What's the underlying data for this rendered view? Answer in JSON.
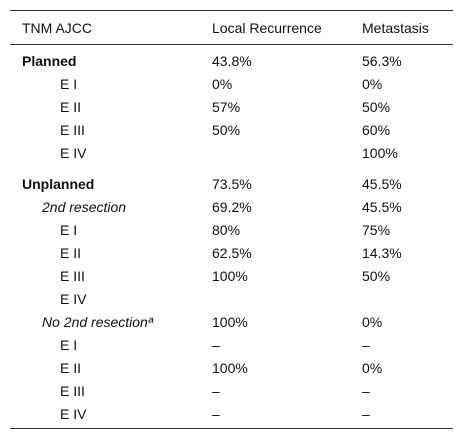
{
  "table": {
    "headers": [
      "TNM AJCC",
      "Local Recurrence",
      "Metastasis"
    ],
    "rows": [
      {
        "type": "group",
        "label": "Planned",
        "local": "43.8%",
        "meta": "56.3%"
      },
      {
        "type": "stage",
        "label": "E I",
        "local": "0%",
        "meta": "0%"
      },
      {
        "type": "stage",
        "label": "E II",
        "local": "57%",
        "meta": "50%"
      },
      {
        "type": "stage",
        "label": "E III",
        "local": "50%",
        "meta": "60%"
      },
      {
        "type": "stage",
        "label": "E IV",
        "local": "",
        "meta": "100%"
      },
      {
        "type": "group",
        "label": "Unplanned",
        "local": "73.5%",
        "meta": "45.5%"
      },
      {
        "type": "sub",
        "label": "2nd resection",
        "local": "69.2%",
        "meta": "45.5%"
      },
      {
        "type": "stage",
        "label": "E I",
        "local": "80%",
        "meta": "75%"
      },
      {
        "type": "stage",
        "label": "E II",
        "local": "62.5%",
        "meta": "14.3%"
      },
      {
        "type": "stage",
        "label": "E III",
        "local": "100%",
        "meta": "50%"
      },
      {
        "type": "stage",
        "label": "E IV",
        "local": "",
        "meta": ""
      },
      {
        "type": "sub",
        "label": "No 2nd resectionª",
        "local": "100%",
        "meta": "0%"
      },
      {
        "type": "stage",
        "label": "E I",
        "local": "–",
        "meta": "–"
      },
      {
        "type": "stage",
        "label": "E II",
        "local": "100%",
        "meta": "0%"
      },
      {
        "type": "stage",
        "label": "E III",
        "local": "–",
        "meta": "–"
      },
      {
        "type": "stage",
        "label": "E IV",
        "local": "–",
        "meta": "–"
      }
    ]
  }
}
